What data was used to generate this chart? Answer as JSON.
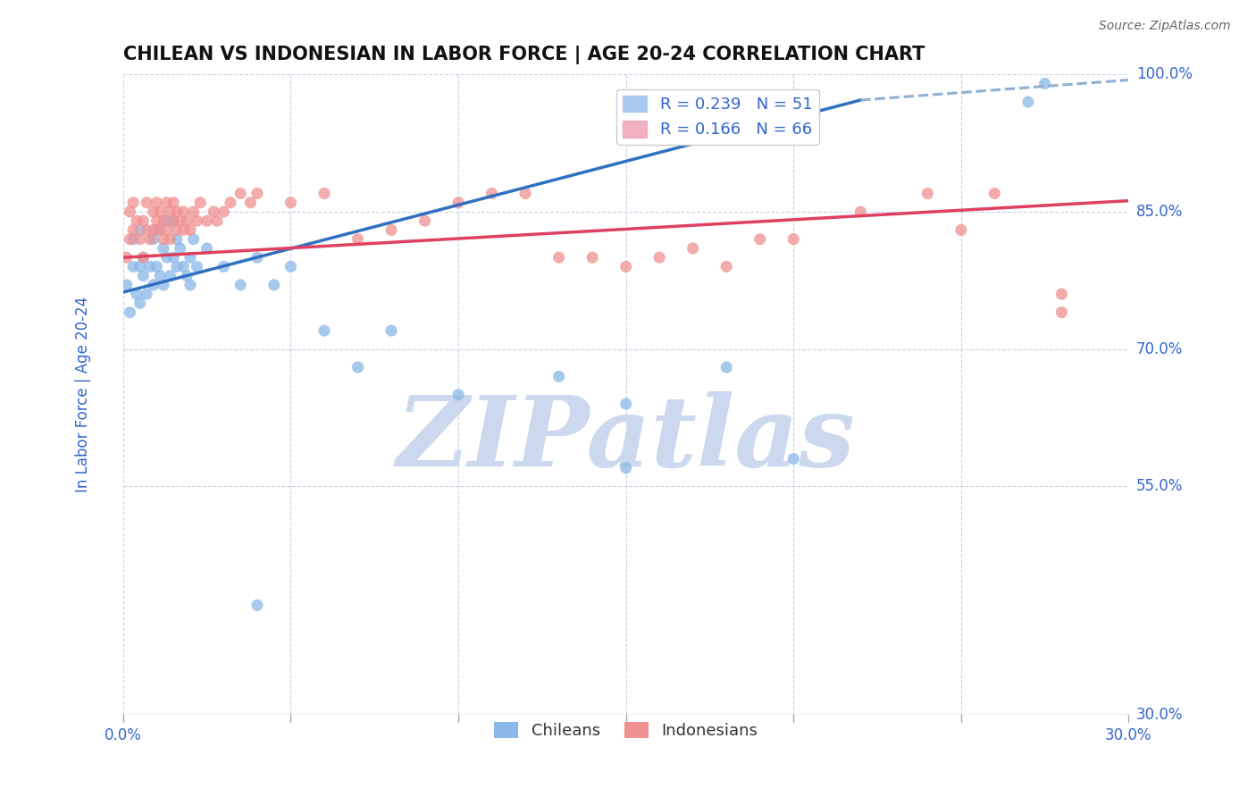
{
  "title": "CHILEAN VS INDONESIAN IN LABOR FORCE | AGE 20-24 CORRELATION CHART",
  "source": "Source: ZipAtlas.com",
  "ylabel": "In Labor Force | Age 20-24",
  "xlim": [
    0.0,
    0.3
  ],
  "ylim": [
    0.3,
    1.0
  ],
  "xticks": [
    0.0,
    0.05,
    0.1,
    0.15,
    0.2,
    0.25,
    0.3
  ],
  "yticks": [
    0.3,
    0.55,
    0.7,
    0.85,
    1.0
  ],
  "ytick_labels": [
    "30.0%",
    "55.0%",
    "70.0%",
    "85.0%",
    "100.0%"
  ],
  "legend_entries": [
    {
      "label": "R = 0.239   N = 51",
      "color": "#a8c8f0"
    },
    {
      "label": "R = 0.166   N = 66",
      "color": "#f0b0c0"
    }
  ],
  "chilean_color": "#8ab8e8",
  "indonesian_color": "#f09090",
  "blue_line_color": "#3070c0",
  "pink_line_color": "#e04060",
  "dashed_line_color": "#90b0d0",
  "watermark_color": "#ccd8ee",
  "tick_color": "#3366cc",
  "grid_color": "#c8d4e8",
  "blue_line": [
    [
      0.0,
      0.762
    ],
    [
      0.22,
      0.972
    ]
  ],
  "blue_dashed_line": [
    [
      0.22,
      0.972
    ],
    [
      0.3,
      0.994
    ]
  ],
  "pink_line": [
    [
      0.0,
      0.8
    ],
    [
      0.3,
      0.862
    ]
  ],
  "chilean_x": [
    0.001,
    0.002,
    0.003,
    0.003,
    0.004,
    0.005,
    0.005,
    0.005,
    0.006,
    0.006,
    0.007,
    0.008,
    0.009,
    0.009,
    0.01,
    0.01,
    0.011,
    0.012,
    0.012,
    0.013,
    0.013,
    0.014,
    0.015,
    0.015,
    0.016,
    0.016,
    0.017,
    0.018,
    0.019,
    0.02,
    0.02,
    0.021,
    0.022,
    0.025,
    0.03,
    0.035,
    0.04,
    0.045,
    0.05,
    0.06,
    0.07,
    0.08,
    0.1,
    0.13,
    0.15,
    0.18,
    0.2,
    0.15,
    0.04,
    0.27,
    0.275
  ],
  "chilean_y": [
    0.77,
    0.74,
    0.79,
    0.82,
    0.76,
    0.79,
    0.75,
    0.83,
    0.78,
    0.8,
    0.76,
    0.79,
    0.77,
    0.82,
    0.79,
    0.83,
    0.78,
    0.77,
    0.81,
    0.8,
    0.84,
    0.78,
    0.8,
    0.84,
    0.79,
    0.82,
    0.81,
    0.79,
    0.78,
    0.8,
    0.77,
    0.82,
    0.79,
    0.81,
    0.79,
    0.77,
    0.8,
    0.77,
    0.79,
    0.72,
    0.68,
    0.72,
    0.65,
    0.67,
    0.64,
    0.68,
    0.58,
    0.57,
    0.42,
    0.97,
    0.99
  ],
  "indonesian_x": [
    0.001,
    0.002,
    0.002,
    0.003,
    0.003,
    0.004,
    0.005,
    0.006,
    0.006,
    0.007,
    0.007,
    0.008,
    0.009,
    0.009,
    0.01,
    0.01,
    0.011,
    0.011,
    0.012,
    0.012,
    0.013,
    0.013,
    0.014,
    0.014,
    0.015,
    0.015,
    0.016,
    0.016,
    0.017,
    0.018,
    0.018,
    0.019,
    0.02,
    0.021,
    0.022,
    0.023,
    0.025,
    0.027,
    0.028,
    0.03,
    0.032,
    0.035,
    0.038,
    0.04,
    0.05,
    0.06,
    0.07,
    0.08,
    0.09,
    0.1,
    0.11,
    0.13,
    0.15,
    0.17,
    0.19,
    0.22,
    0.24,
    0.26,
    0.28,
    0.16,
    0.18,
    0.2,
    0.28,
    0.25,
    0.14,
    0.12
  ],
  "indonesian_y": [
    0.8,
    0.82,
    0.85,
    0.83,
    0.86,
    0.84,
    0.82,
    0.84,
    0.8,
    0.83,
    0.86,
    0.82,
    0.85,
    0.83,
    0.84,
    0.86,
    0.83,
    0.85,
    0.82,
    0.84,
    0.86,
    0.83,
    0.85,
    0.82,
    0.84,
    0.86,
    0.83,
    0.85,
    0.84,
    0.83,
    0.85,
    0.84,
    0.83,
    0.85,
    0.84,
    0.86,
    0.84,
    0.85,
    0.84,
    0.85,
    0.86,
    0.87,
    0.86,
    0.87,
    0.86,
    0.87,
    0.82,
    0.83,
    0.84,
    0.86,
    0.87,
    0.8,
    0.79,
    0.81,
    0.82,
    0.85,
    0.87,
    0.87,
    0.76,
    0.8,
    0.79,
    0.82,
    0.74,
    0.83,
    0.8,
    0.87
  ]
}
